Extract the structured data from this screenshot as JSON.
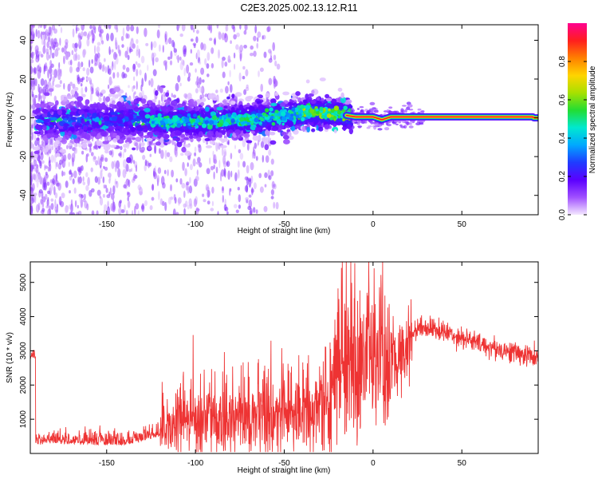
{
  "title": "C2E3.2025.002.13.12.R11",
  "chart_data": [
    {
      "type": "heatmap",
      "xlabel": "Height of straight line (km)",
      "ylabel": "Frequency (Hz)",
      "xlim": [
        -193,
        93
      ],
      "ylim": [
        -50,
        48
      ],
      "x_ticks": [
        "-150",
        "-100",
        "-50",
        "0",
        "50"
      ],
      "y_ticks": [
        "40",
        "20",
        "0",
        "-20",
        "-40"
      ],
      "grid": false,
      "colorbar": {
        "label": "Normalized spectral amplitude",
        "range": [
          0,
          1
        ],
        "ticks": [
          "0.0",
          "0.2",
          "0.4",
          "0.6",
          "0.8"
        ],
        "colors": [
          "#f4e8ff",
          "#a050ff",
          "#5b00ff",
          "#1f3cff",
          "#00a8ff",
          "#00e8d0",
          "#22dd33",
          "#a8e000",
          "#ffd400",
          "#ff8000",
          "#ff1e1e",
          "#ff0090"
        ]
      },
      "ridge": {
        "description_points_x": [
          -190,
          -150,
          -120,
          -100,
          -75,
          -50,
          -35,
          -20,
          -10,
          0,
          5,
          10,
          90
        ],
        "description_points_y": [
          -2,
          -1,
          -2,
          -2,
          -1,
          1,
          3,
          2,
          0.5,
          0.5,
          -1,
          0.5,
          0.5
        ]
      }
    },
    {
      "type": "line",
      "xlabel": "Height of straight line (km)",
      "ylabel": "SNR (10 * v/v)",
      "xlim": [
        -193,
        93
      ],
      "ylim": [
        0,
        5600
      ],
      "x_ticks": [
        "-150",
        "-100",
        "-50",
        "0",
        "50"
      ],
      "y_ticks": [
        "5000",
        "4000",
        "3000",
        "2000",
        "1000"
      ],
      "grid": false,
      "series": [
        {
          "color": "#ee3333",
          "x": [
            -190,
            -180,
            -170,
            -160,
            -150,
            -140,
            -130,
            -120,
            -110,
            -100,
            -90,
            -80,
            -70,
            -60,
            -50,
            -40,
            -30,
            -25,
            -20,
            -17,
            -15,
            -12,
            -10,
            -5,
            0,
            5,
            8,
            10,
            15,
            20,
            25,
            30,
            40,
            50,
            60,
            70,
            80,
            92
          ],
          "values": [
            300,
            350,
            330,
            310,
            300,
            290,
            420,
            550,
            900,
            1000,
            1050,
            1000,
            1100,
            1100,
            1150,
            1200,
            1250,
            1500,
            2500,
            3200,
            3000,
            2800,
            2400,
            2700,
            2900,
            2900,
            2400,
            2600,
            2800,
            3300,
            3700,
            3700,
            3550,
            3400,
            3200,
            3050,
            2950,
            2800
          ]
        }
      ]
    }
  ]
}
